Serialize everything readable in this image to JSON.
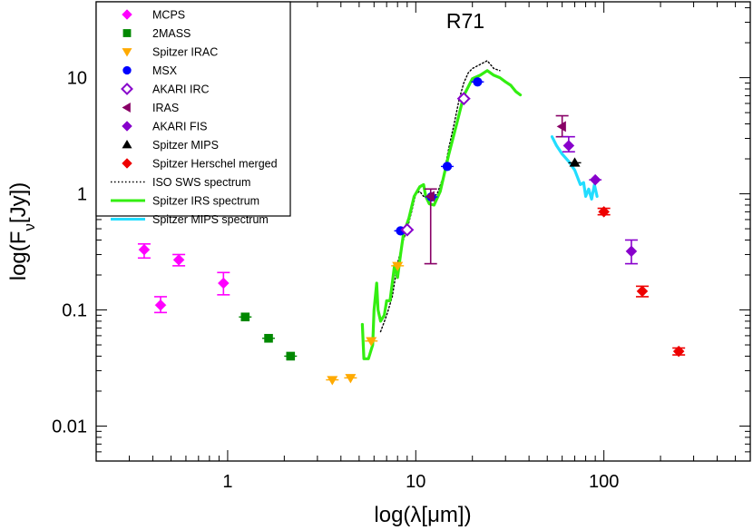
{
  "chart_data": {
    "type": "scatter",
    "title": "R71",
    "xlabel": "log(λ[μm])",
    "ylabel": "log(Fν[Jy])",
    "x_scale": "log",
    "y_scale": "log",
    "xlim": [
      0.2,
      600
    ],
    "ylim": [
      0.005,
      45
    ],
    "grid": false,
    "legend_position": "top-left",
    "x_tick_labels": [
      {
        "value": 1,
        "label": "1"
      },
      {
        "value": 10,
        "label": "10"
      },
      {
        "value": 100,
        "label": "100"
      }
    ],
    "y_tick_labels": [
      {
        "value": 0.01,
        "label": "0.01"
      },
      {
        "value": 0.1,
        "label": "0.1"
      },
      {
        "value": 1,
        "label": "1"
      },
      {
        "value": 10,
        "label": "10"
      }
    ],
    "series": [
      {
        "name": "MCPS",
        "marker": "diamond",
        "color": "#ff00ff",
        "points": [
          {
            "x": 0.36,
            "y": 0.33,
            "ylo": 0.28,
            "yhi": 0.37
          },
          {
            "x": 0.44,
            "y": 0.11,
            "ylo": 0.095,
            "yhi": 0.13
          },
          {
            "x": 0.55,
            "y": 0.27,
            "ylo": 0.24,
            "yhi": 0.3
          },
          {
            "x": 0.95,
            "y": 0.17,
            "ylo": 0.135,
            "yhi": 0.21
          }
        ]
      },
      {
        "name": "2MASS",
        "marker": "square",
        "color": "#008800",
        "points": [
          {
            "x": 1.24,
            "y": 0.087
          },
          {
            "x": 1.65,
            "y": 0.057
          },
          {
            "x": 2.16,
            "y": 0.04
          }
        ]
      },
      {
        "name": "Spitzer IRAC",
        "marker": "triangle-down",
        "color": "#ffaa00",
        "points": [
          {
            "x": 3.6,
            "y": 0.025
          },
          {
            "x": 4.5,
            "y": 0.026
          },
          {
            "x": 5.8,
            "y": 0.054
          },
          {
            "x": 8.0,
            "y": 0.24
          }
        ]
      },
      {
        "name": "MSX",
        "marker": "circle",
        "color": "#0000ff",
        "points": [
          {
            "x": 8.3,
            "y": 0.48
          },
          {
            "x": 12.1,
            "y": 0.94
          },
          {
            "x": 14.7,
            "y": 1.72
          },
          {
            "x": 21.3,
            "y": 9.2
          }
        ]
      },
      {
        "name": "AKARI IRC",
        "marker": "diamond-open",
        "color": "#8800cc",
        "points": [
          {
            "x": 9.0,
            "y": 0.49
          },
          {
            "x": 18.0,
            "y": 6.6
          }
        ]
      },
      {
        "name": "IRAS",
        "marker": "triangle-left",
        "color": "#880066",
        "points": [
          {
            "x": 12.0,
            "y": 0.95,
            "ylo": 0.25,
            "yhi": 1.1
          },
          {
            "x": 60.0,
            "y": 3.8,
            "ylo": 3.1,
            "yhi": 4.7
          }
        ]
      },
      {
        "name": "AKARI FIS",
        "marker": "diamond",
        "color": "#8800cc",
        "points": [
          {
            "x": 65.0,
            "y": 2.6,
            "ylo": 2.3,
            "yhi": 3.1
          },
          {
            "x": 90.0,
            "y": 1.32
          },
          {
            "x": 140.0,
            "y": 0.32,
            "ylo": 0.25,
            "yhi": 0.4
          }
        ]
      },
      {
        "name": "Spitzer MIPS",
        "marker": "triangle-up",
        "color": "#000000",
        "points": [
          {
            "x": 70.0,
            "y": 1.85
          }
        ]
      },
      {
        "name": "Spitzer Herschel merged",
        "marker": "diamond",
        "color": "#ee0000",
        "points": [
          {
            "x": 100.0,
            "y": 0.7,
            "ylo": 0.66,
            "yhi": 0.75
          },
          {
            "x": 160.0,
            "y": 0.145,
            "ylo": 0.13,
            "yhi": 0.16
          },
          {
            "x": 250.0,
            "y": 0.044,
            "ylo": 0.041,
            "yhi": 0.047
          }
        ]
      },
      {
        "name": "ISO SWS spectrum",
        "line": "dotted",
        "color": "#000000",
        "points": [
          {
            "x": 6.5,
            "y": 0.065
          },
          {
            "x": 7.0,
            "y": 0.09
          },
          {
            "x": 7.5,
            "y": 0.13
          },
          {
            "x": 8.0,
            "y": 0.25
          },
          {
            "x": 8.5,
            "y": 0.38
          },
          {
            "x": 9.0,
            "y": 0.5
          },
          {
            "x": 9.5,
            "y": 0.7
          },
          {
            "x": 10.0,
            "y": 1.0
          },
          {
            "x": 10.5,
            "y": 1.05
          },
          {
            "x": 11.0,
            "y": 0.95
          },
          {
            "x": 12.0,
            "y": 0.9
          },
          {
            "x": 13.0,
            "y": 1.0
          },
          {
            "x": 14.0,
            "y": 1.4
          },
          {
            "x": 15.0,
            "y": 2.5
          },
          {
            "x": 16.0,
            "y": 4.0
          },
          {
            "x": 17.0,
            "y": 6.5
          },
          {
            "x": 18.0,
            "y": 9.0
          },
          {
            "x": 19.0,
            "y": 11.0
          },
          {
            "x": 20.0,
            "y": 12.0
          },
          {
            "x": 22.0,
            "y": 13.0
          },
          {
            "x": 24.0,
            "y": 14.0
          },
          {
            "x": 26.0,
            "y": 12.0
          },
          {
            "x": 28.0,
            "y": 11.5
          }
        ]
      },
      {
        "name": "Spitzer IRS spectrum",
        "line": "solid",
        "color": "#33ee11",
        "points": [
          {
            "x": 5.2,
            "y": 0.075
          },
          {
            "x": 5.3,
            "y": 0.038
          },
          {
            "x": 5.6,
            "y": 0.038
          },
          {
            "x": 5.9,
            "y": 0.05
          },
          {
            "x": 6.0,
            "y": 0.1
          },
          {
            "x": 6.2,
            "y": 0.17
          },
          {
            "x": 6.3,
            "y": 0.1
          },
          {
            "x": 6.5,
            "y": 0.08
          },
          {
            "x": 6.8,
            "y": 0.09
          },
          {
            "x": 7.0,
            "y": 0.12
          },
          {
            "x": 7.3,
            "y": 0.12
          },
          {
            "x": 7.7,
            "y": 0.24
          },
          {
            "x": 8.0,
            "y": 0.19
          },
          {
            "x": 8.3,
            "y": 0.3
          },
          {
            "x": 8.6,
            "y": 0.45
          },
          {
            "x": 9.2,
            "y": 0.62
          },
          {
            "x": 9.8,
            "y": 0.95
          },
          {
            "x": 10.5,
            "y": 1.15
          },
          {
            "x": 11.0,
            "y": 1.2
          },
          {
            "x": 11.3,
            "y": 0.95
          },
          {
            "x": 11.8,
            "y": 0.82
          },
          {
            "x": 12.5,
            "y": 0.8
          },
          {
            "x": 13.5,
            "y": 1.05
          },
          {
            "x": 15.0,
            "y": 2.2
          },
          {
            "x": 16.5,
            "y": 4.0
          },
          {
            "x": 18.0,
            "y": 7.0
          },
          {
            "x": 20.0,
            "y": 9.8
          },
          {
            "x": 22.0,
            "y": 10.5
          },
          {
            "x": 24.0,
            "y": 11.5
          },
          {
            "x": 26.0,
            "y": 10.5
          },
          {
            "x": 28.0,
            "y": 10.0
          },
          {
            "x": 30.0,
            "y": 9.2
          },
          {
            "x": 32.0,
            "y": 8.6
          },
          {
            "x": 34.0,
            "y": 7.6
          },
          {
            "x": 36.0,
            "y": 7.1
          }
        ]
      },
      {
        "name": "Spitzer MIPS spectrum",
        "line": "solid",
        "color": "#22ddff",
        "points": [
          {
            "x": 53.0,
            "y": 3.1
          },
          {
            "x": 56.0,
            "y": 2.6
          },
          {
            "x": 60.0,
            "y": 2.2
          },
          {
            "x": 65.0,
            "y": 1.9
          },
          {
            "x": 70.0,
            "y": 1.6
          },
          {
            "x": 75.0,
            "y": 1.2
          },
          {
            "x": 78.0,
            "y": 1.25
          },
          {
            "x": 80.0,
            "y": 0.95
          },
          {
            "x": 83.0,
            "y": 1.1
          },
          {
            "x": 86.0,
            "y": 0.9
          },
          {
            "x": 89.0,
            "y": 1.2
          },
          {
            "x": 92.0,
            "y": 0.95
          }
        ]
      }
    ]
  }
}
